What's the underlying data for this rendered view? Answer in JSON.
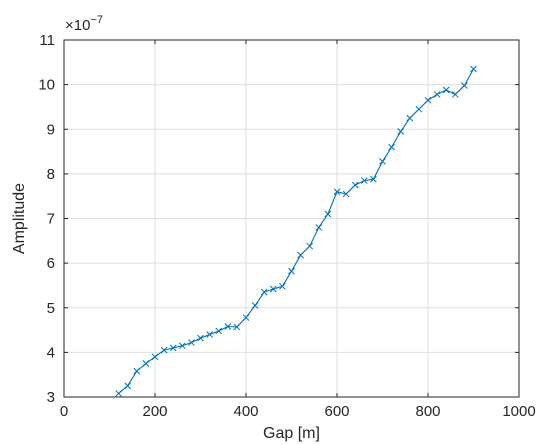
{
  "chart_data": {
    "type": "line",
    "title": "",
    "xlabel": "Gap [m]",
    "ylabel": "Amplitude",
    "xlim": [
      0,
      1000
    ],
    "ylim": [
      3,
      11
    ],
    "xticks": [
      0,
      200,
      400,
      600,
      800,
      1000
    ],
    "yticks": [
      3,
      4,
      5,
      6,
      7,
      8,
      9,
      10,
      11
    ],
    "y_exponent_base": "×10",
    "y_exponent_power": "−7",
    "grid": true,
    "line_color": "#0072bd",
    "marker": "x",
    "series": [
      {
        "x": [
          120,
          140,
          160,
          180,
          200,
          220,
          240,
          260,
          280,
          300,
          320,
          340,
          360,
          380,
          400,
          420,
          440,
          460,
          480,
          500,
          520,
          540,
          560,
          580,
          600,
          620,
          640,
          660,
          680,
          700,
          720,
          740,
          760,
          780,
          800,
          820,
          840,
          860,
          880,
          900
        ],
        "y": [
          3.08,
          3.25,
          3.58,
          3.75,
          3.9,
          4.05,
          4.1,
          4.15,
          4.22,
          4.32,
          4.4,
          4.48,
          4.58,
          4.57,
          4.78,
          5.05,
          5.35,
          5.42,
          5.48,
          5.82,
          6.18,
          6.38,
          6.8,
          7.1,
          7.6,
          7.55,
          7.75,
          7.85,
          7.88,
          8.28,
          8.6,
          8.95,
          9.25,
          9.45,
          9.65,
          9.78,
          9.88,
          9.78,
          9.98,
          10.35
        ]
      }
    ]
  }
}
